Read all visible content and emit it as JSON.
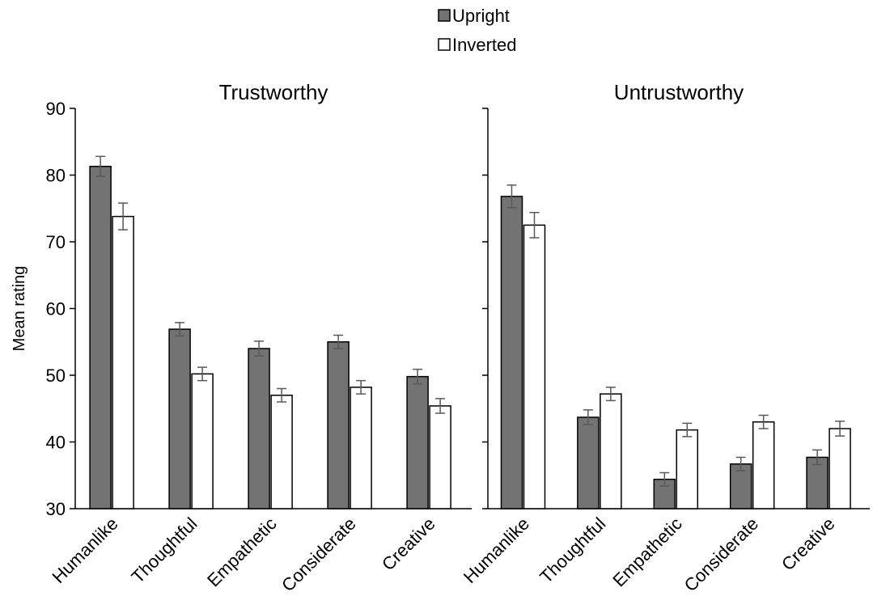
{
  "chart_data": [
    {
      "type": "bar",
      "title": "Trustworthy",
      "ylabel": "Mean rating",
      "categories": [
        "Humanlike",
        "Thoughtful",
        "Empathetic",
        "Considerate",
        "Creative"
      ],
      "series": [
        {
          "name": "Upright",
          "color": "#737373",
          "values": [
            81.3,
            56.9,
            54.0,
            55.0,
            49.8
          ],
          "errors": [
            1.5,
            1.0,
            1.1,
            1.0,
            1.1
          ]
        },
        {
          "name": "Inverted",
          "color": "#ffffff",
          "values": [
            73.8,
            50.2,
            47.0,
            48.2,
            45.4
          ],
          "errors": [
            2.0,
            1.0,
            1.0,
            1.0,
            1.1
          ]
        }
      ],
      "ylim": [
        30,
        90
      ],
      "yticks": [
        30,
        40,
        50,
        60,
        70,
        80,
        90
      ]
    },
    {
      "type": "bar",
      "title": "Untrustworthy",
      "categories": [
        "Humanlike",
        "Thoughtful",
        "Empathetic",
        "Considerate",
        "Creative"
      ],
      "series": [
        {
          "color": "#737373",
          "values": [
            76.8,
            43.7,
            34.4,
            36.7,
            37.7
          ],
          "errors": [
            1.7,
            1.1,
            1.0,
            1.0,
            1.1
          ]
        },
        {
          "color": "#ffffff",
          "values": [
            72.5,
            47.2,
            41.8,
            43.0,
            42.0
          ],
          "errors": [
            1.9,
            1.0,
            1.0,
            1.0,
            1.1
          ]
        }
      ],
      "ylim": [
        30,
        90
      ]
    }
  ]
}
